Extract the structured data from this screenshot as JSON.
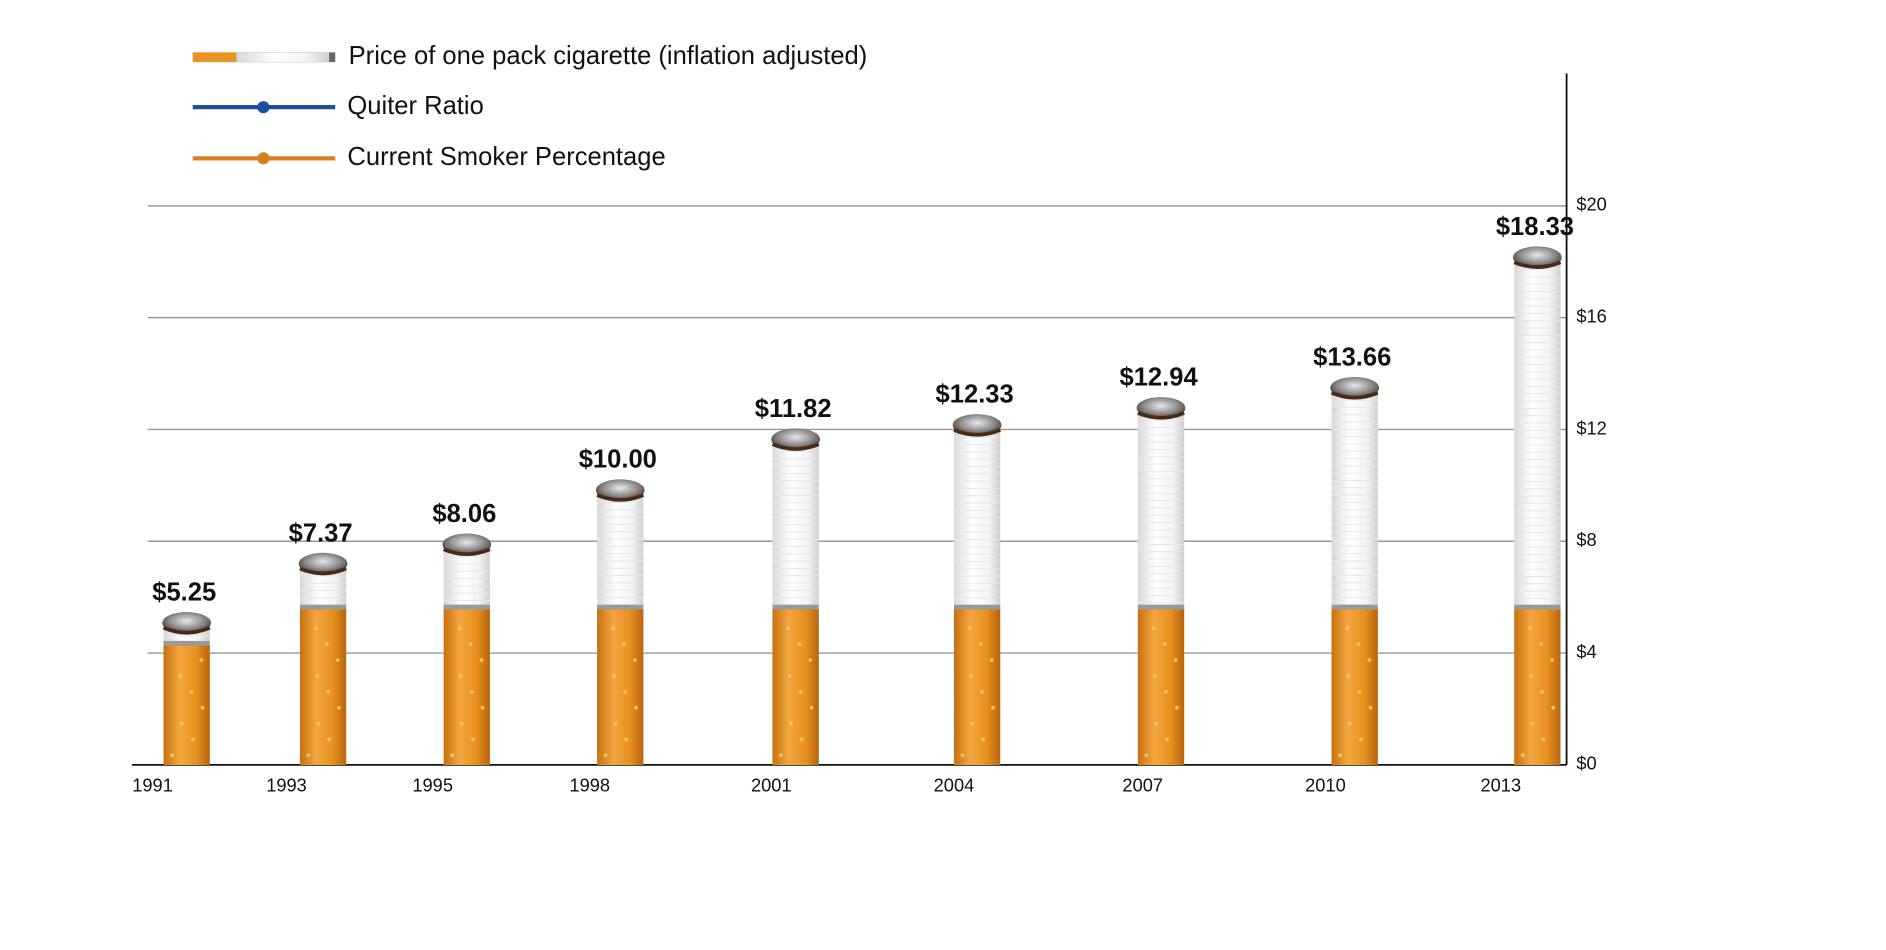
{
  "chart_data": {
    "type": "bar",
    "categories": [
      "1991",
      "1993",
      "1995",
      "1998",
      "2001",
      "2004",
      "2007",
      "2010",
      "2013"
    ],
    "series": [
      {
        "name": "Price of one pack cigarette (inflation adjusted)",
        "color": "#e8921f",
        "values": [
          5.25,
          7.37,
          8.06,
          10.0,
          11.82,
          12.33,
          12.94,
          13.66,
          18.33
        ],
        "value_labels": [
          "$5.25",
          "$7.37",
          "$8.06",
          "$10.00",
          "$11.82",
          "$12.33",
          "$12.94",
          "$13.66",
          "$18.33"
        ]
      }
    ],
    "legend_lines": [
      {
        "name": "Quiter Ratio",
        "color": "#1f4e9c"
      },
      {
        "name": "Current Smoker Percentage",
        "color": "#d8801e"
      }
    ],
    "ylim": [
      0,
      25
    ],
    "yticks": [
      {
        "value": 0,
        "label": "$0"
      },
      {
        "value": 4,
        "label": "$4"
      },
      {
        "value": 8,
        "label": "$8"
      },
      {
        "value": 12,
        "label": "$12"
      },
      {
        "value": 16,
        "label": "$16"
      },
      {
        "value": 20,
        "label": "$20"
      }
    ],
    "grid": true,
    "y_axis_side": "right"
  }
}
